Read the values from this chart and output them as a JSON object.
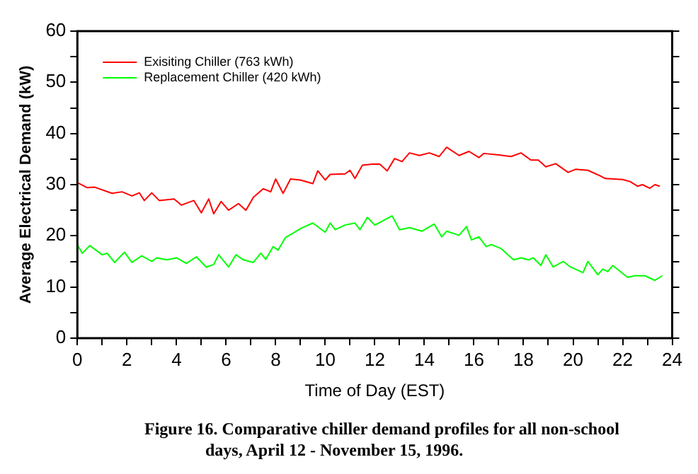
{
  "chart_data": {
    "type": "line",
    "xlabel": "Time of Day (EST)",
    "ylabel": "Average Electrical Demand (kW)",
    "annotations": [
      "Figure 16.  Comparative chiller demand profiles for all non-school days, April 12 - November 15, 1996."
    ],
    "xlim": [
      0,
      24
    ],
    "xticks": [
      0,
      {
        "value": 1,
        "label": null
      },
      2,
      {
        "value": 3,
        "label": null
      },
      4,
      {
        "value": 5,
        "label": null
      },
      6,
      {
        "value": 7,
        "label": null
      },
      8,
      {
        "value": 9,
        "label": null
      },
      10,
      {
        "value": 11,
        "label": null
      },
      12,
      {
        "value": 13,
        "label": null
      },
      14,
      {
        "value": 15,
        "label": null
      },
      16,
      {
        "value": 17,
        "label": null
      },
      18,
      {
        "value": 19,
        "label": null
      },
      20,
      {
        "value": 21,
        "label": null
      },
      22,
      {
        "value": 23,
        "label": null
      },
      24
    ],
    "ylim": [
      0,
      60
    ],
    "yticks": [
      0,
      {
        "value": 5,
        "label": null
      },
      10,
      {
        "value": 15,
        "label": null
      },
      20,
      {
        "value": 25,
        "label": null
      },
      30,
      {
        "value": 35,
        "label": null
      },
      40,
      {
        "value": 45,
        "label": null
      },
      50,
      {
        "value": 55,
        "label": null
      },
      60
    ],
    "grid": false,
    "legend": "top left",
    "marker": "none",
    "line_style": "solid",
    "series": [
      {
        "name": "Exisiting Chiller (763 kWh)",
        "color": "#ff0000",
        "x": [
          0,
          0.4,
          0.7,
          1.4,
          1.8,
          2.2,
          2.5,
          2.7,
          3.0,
          3.3,
          3.9,
          4.2,
          4.7,
          5.0,
          5.3,
          5.5,
          5.8,
          6.1,
          6.5,
          6.8,
          7.1,
          7.5,
          7.8,
          8.0,
          8.3,
          8.6,
          9.0,
          9.5,
          9.7,
          10.0,
          10.2,
          10.8,
          11.0,
          11.2,
          11.5,
          11.9,
          12.2,
          12.5,
          12.8,
          13.1,
          13.4,
          13.8,
          14.2,
          14.6,
          14.9,
          15.4,
          15.8,
          16.2,
          16.4,
          17.0,
          17.5,
          17.9,
          18.3,
          18.6,
          18.9,
          19.3,
          19.8,
          20.1,
          20.6,
          21.1,
          21.3,
          22.0,
          22.3,
          22.6,
          22.8,
          23.1,
          23.3,
          23.5
        ],
        "values": [
          30.4,
          29.4,
          29.5,
          28.3,
          28.6,
          27.8,
          28.4,
          26.9,
          28.4,
          26.9,
          27.2,
          26.0,
          26.9,
          24.5,
          27.2,
          24.3,
          26.7,
          25.0,
          26.3,
          25.0,
          27.5,
          29.2,
          28.6,
          31.1,
          28.3,
          31.1,
          30.9,
          30.2,
          32.7,
          30.9,
          32.0,
          32.1,
          32.8,
          31.2,
          33.8,
          34.0,
          34.0,
          32.7,
          35.1,
          34.5,
          36.2,
          35.7,
          36.2,
          35.5,
          37.3,
          35.7,
          36.5,
          35.3,
          36.1,
          35.8,
          35.5,
          36.2,
          34.8,
          34.8,
          33.5,
          34.1,
          32.4,
          33.0,
          32.8,
          31.7,
          31.2,
          31.0,
          30.6,
          29.7,
          30.0,
          29.3,
          30.0,
          29.7
        ]
      },
      {
        "name": "Replacement Chiller (420 kWh)",
        "color": "#00ff00",
        "x": [
          0,
          0.2,
          0.5,
          1.0,
          1.2,
          1.5,
          1.9,
          2.2,
          2.6,
          3.0,
          3.2,
          3.6,
          4.0,
          4.4,
          4.8,
          5.2,
          5.5,
          5.7,
          6.1,
          6.4,
          6.7,
          7.1,
          7.4,
          7.6,
          7.9,
          8.1,
          8.4,
          8.7,
          9.0,
          9.5,
          10.0,
          10.2,
          10.4,
          10.8,
          11.2,
          11.4,
          11.7,
          12.0,
          12.7,
          13.0,
          13.4,
          13.9,
          14.4,
          14.7,
          14.9,
          15.4,
          15.7,
          15.9,
          16.2,
          16.5,
          16.7,
          17.1,
          17.6,
          17.9,
          18.2,
          18.4,
          18.7,
          18.9,
          19.2,
          19.6,
          19.9,
          20.4,
          20.6,
          21.0,
          21.2,
          21.4,
          21.6,
          22.2,
          22.5,
          22.9,
          23.3,
          23.6
        ],
        "values": [
          18.2,
          16.6,
          18.1,
          16.3,
          16.6,
          14.8,
          16.8,
          14.8,
          16.1,
          15.0,
          15.7,
          15.3,
          15.7,
          14.6,
          15.9,
          13.9,
          14.4,
          16.3,
          13.9,
          16.3,
          15.3,
          14.8,
          16.6,
          15.4,
          17.9,
          17.2,
          19.7,
          20.5,
          21.4,
          22.5,
          20.7,
          22.5,
          21.2,
          22.1,
          22.5,
          21.2,
          23.6,
          22.1,
          23.9,
          21.2,
          21.6,
          20.9,
          22.3,
          19.8,
          20.9,
          20.1,
          21.8,
          19.2,
          19.8,
          17.9,
          18.3,
          17.5,
          15.3,
          15.7,
          15.3,
          15.7,
          14.2,
          16.3,
          13.9,
          15.0,
          13.9,
          12.8,
          15.0,
          12.4,
          13.5,
          13.0,
          14.2,
          11.9,
          12.2,
          12.2,
          11.3,
          12.2
        ]
      }
    ]
  }
}
